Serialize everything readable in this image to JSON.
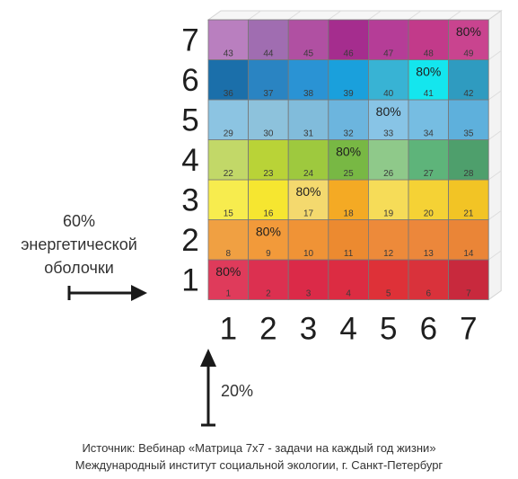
{
  "row_labels": [
    "1",
    "2",
    "3",
    "4",
    "5",
    "6",
    "7"
  ],
  "col_labels": [
    "1",
    "2",
    "3",
    "4",
    "5",
    "6",
    "7"
  ],
  "cells": [
    [
      {
        "n": "1",
        "c": "#df3b5b"
      },
      {
        "n": "2",
        "c": "#dc3050"
      },
      {
        "n": "3",
        "c": "#db2a48"
      },
      {
        "n": "4",
        "c": "#dc2c42"
      },
      {
        "n": "5",
        "c": "#de3138"
      },
      {
        "n": "6",
        "c": "#d9323b"
      },
      {
        "n": "7",
        "c": "#c8293d"
      }
    ],
    [
      {
        "n": "8",
        "c": "#f0a042"
      },
      {
        "n": "9",
        "c": "#f29a3a"
      },
      {
        "n": "10",
        "c": "#f09336"
      },
      {
        "n": "11",
        "c": "#ec8a30"
      },
      {
        "n": "12",
        "c": "#ed8a3a"
      },
      {
        "n": "13",
        "c": "#ec873b"
      },
      {
        "n": "14",
        "c": "#ea8537"
      }
    ],
    [
      {
        "n": "15",
        "c": "#f7ec4e"
      },
      {
        "n": "16",
        "c": "#f6e630"
      },
      {
        "n": "17",
        "c": "#f4d96e"
      },
      {
        "n": "18",
        "c": "#f4aa24"
      },
      {
        "n": "19",
        "c": "#f6dc58"
      },
      {
        "n": "20",
        "c": "#f5d235"
      },
      {
        "n": "21",
        "c": "#f2c425"
      }
    ],
    [
      {
        "n": "22",
        "c": "#c2d868"
      },
      {
        "n": "23",
        "c": "#b9d337"
      },
      {
        "n": "24",
        "c": "#9ec93e"
      },
      {
        "n": "25",
        "c": "#78b844"
      },
      {
        "n": "26",
        "c": "#8fc98a"
      },
      {
        "n": "27",
        "c": "#5eb47a"
      },
      {
        "n": "28",
        "c": "#4e9f6c"
      }
    ],
    [
      {
        "n": "29",
        "c": "#8cc4e2"
      },
      {
        "n": "30",
        "c": "#8dc2dc"
      },
      {
        "n": "31",
        "c": "#81bcdb"
      },
      {
        "n": "32",
        "c": "#6cb5de"
      },
      {
        "n": "33",
        "c": "#88c4e6"
      },
      {
        "n": "34",
        "c": "#76bde2"
      },
      {
        "n": "35",
        "c": "#5eb0dc"
      }
    ],
    [
      {
        "n": "36",
        "c": "#1b6faa"
      },
      {
        "n": "37",
        "c": "#2a84c2"
      },
      {
        "n": "38",
        "c": "#2a93d4"
      },
      {
        "n": "39",
        "c": "#1aa0dc"
      },
      {
        "n": "40",
        "c": "#38b3d4"
      },
      {
        "n": "41",
        "c": "#14e6ee"
      },
      {
        "n": "42",
        "c": "#2f9bc0"
      }
    ],
    [
      {
        "n": "43",
        "c": "#b97fbf"
      },
      {
        "n": "44",
        "c": "#a06db1"
      },
      {
        "n": "45",
        "c": "#b050a2"
      },
      {
        "n": "46",
        "c": "#a52d8e"
      },
      {
        "n": "47",
        "c": "#b53d97"
      },
      {
        "n": "48",
        "c": "#c23a8a"
      },
      {
        "n": "49",
        "c": "#c9448f"
      }
    ]
  ],
  "highlight_label": "80%",
  "side_text": [
    "60%",
    "энергетической",
    "оболочки"
  ],
  "bottom_percent": "20%",
  "caption": [
    "Источник: Вебинар «Матрица 7х7 - задачи на каждый год жизни»",
    "Международный институт социальной экологии, г. Санкт-Петербург"
  ]
}
